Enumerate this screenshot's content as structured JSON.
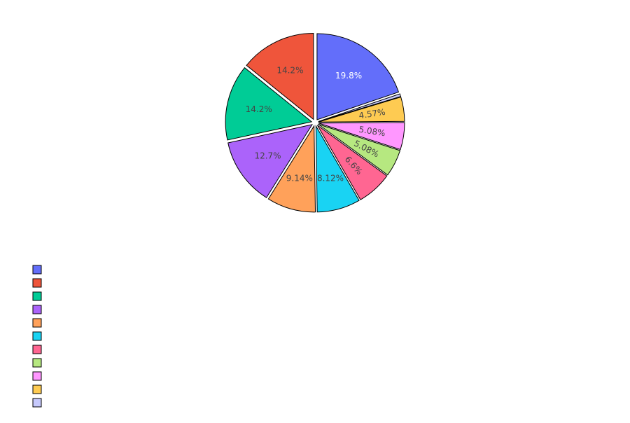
{
  "chart_data": {
    "type": "pie",
    "title": "",
    "values": [
      19.8,
      0.508,
      4.57,
      5.08,
      5.08,
      6.6,
      8.12,
      9.14,
      12.7,
      14.2,
      14.2
    ],
    "colors": [
      "#636efa",
      "#c6c9fc",
      "#fecb52",
      "#ff97ff",
      "#b6e880",
      "#ff6692",
      "#19d3f3",
      "#ffa15a",
      "#ab63fa",
      "#00cc96",
      "#ef553b"
    ],
    "slice_labels": [
      "19.8%",
      "",
      "4.57%",
      "5.08%",
      "5.08%",
      "6.6%",
      "8.12%",
      "9.14%",
      "12.7%",
      "14.2%",
      "14.2%"
    ],
    "label_colors": [
      "#ffffff",
      "#444444",
      "#444444",
      "#444444",
      "#444444",
      "#444444",
      "#444444",
      "#444444",
      "#444444",
      "#444444",
      "#444444"
    ],
    "legend": {
      "placement": "bottom-left",
      "entries": [
        {
          "name": "",
          "color": "#636efa"
        },
        {
          "name": "",
          "color": "#ef553b"
        },
        {
          "name": "",
          "color": "#00cc96"
        },
        {
          "name": "",
          "color": "#ab63fa"
        },
        {
          "name": "",
          "color": "#ffa15a"
        },
        {
          "name": "",
          "color": "#19d3f3"
        },
        {
          "name": "",
          "color": "#ff6692"
        },
        {
          "name": "",
          "color": "#b6e880"
        },
        {
          "name": "",
          "color": "#ff97ff"
        },
        {
          "name": "",
          "color": "#fecb52"
        },
        {
          "name": "",
          "color": "#c6c9fc"
        }
      ]
    }
  }
}
